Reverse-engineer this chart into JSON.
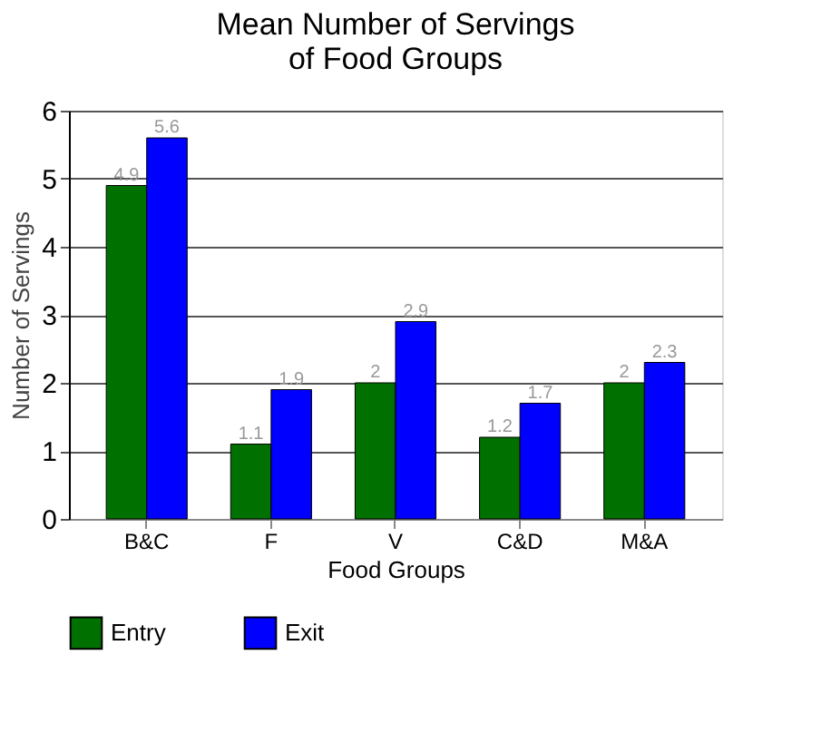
{
  "chart_data": {
    "type": "bar",
    "title": "Mean Number of Servings\nof Food Groups",
    "xlabel": "Food Groups",
    "ylabel": "Number of Servings",
    "categories": [
      "B&C",
      "F",
      "V",
      "C&D",
      "M&A"
    ],
    "series": [
      {
        "name": "Entry",
        "color": "#007000",
        "values": [
          4.9,
          1.1,
          2,
          1.2,
          2
        ]
      },
      {
        "name": "Exit",
        "color": "#0000ff",
        "values": [
          5.6,
          1.9,
          2.9,
          1.7,
          2.3
        ]
      }
    ],
    "ylim": [
      0,
      6
    ],
    "yticks": [
      0,
      1,
      2,
      3,
      4,
      5,
      6
    ],
    "grid": "y",
    "legend": "bottom",
    "data_labels": true
  }
}
